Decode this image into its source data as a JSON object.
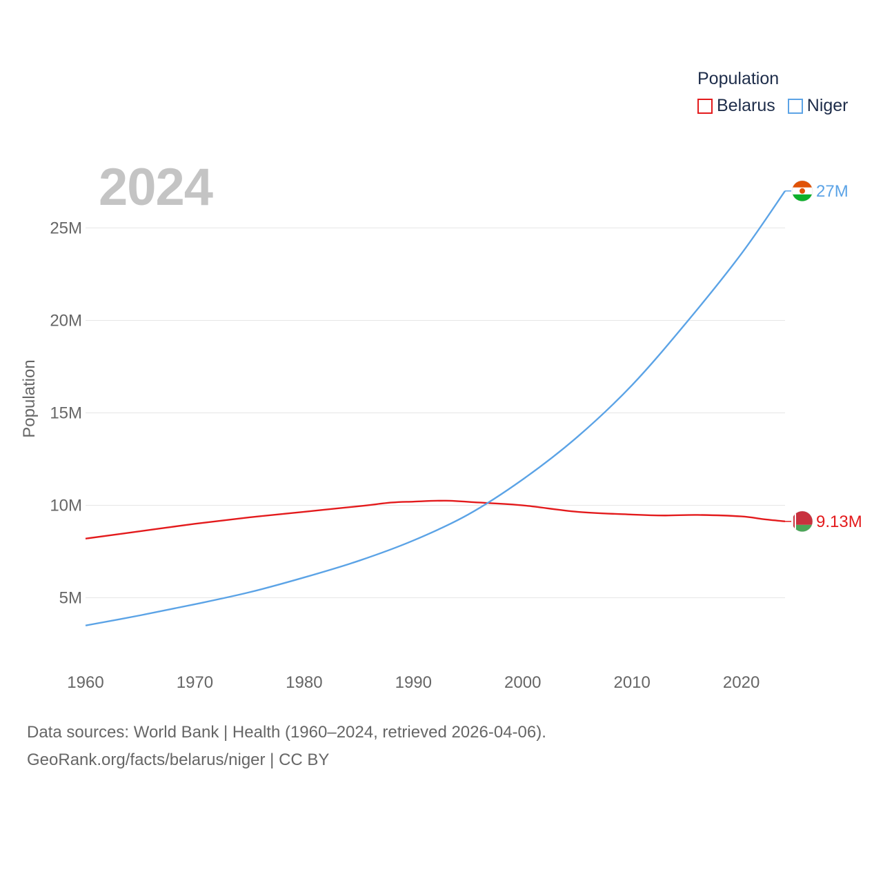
{
  "legend": {
    "title": "Population",
    "items": [
      {
        "label": "Belarus",
        "color": "#e31a1c"
      },
      {
        "label": "Niger",
        "color": "#5ba3e6"
      }
    ]
  },
  "current_year": "2024",
  "footer": {
    "line1": "Data sources: World Bank | Health (1960–2024, retrieved 2026-04-06).",
    "line2": "GeoRank.org/facts/belarus/niger | CC BY"
  },
  "chart_data": {
    "type": "line",
    "title": "",
    "xlabel": "",
    "ylabel": "Population",
    "xlim": [
      1960,
      2024
    ],
    "ylim": [
      1700000,
      28000000
    ],
    "x_ticks": [
      1960,
      1970,
      1980,
      1990,
      2000,
      2010,
      2020
    ],
    "x_tick_labels": [
      "1960",
      "1970",
      "1980",
      "1990",
      "2000",
      "2010",
      "2020"
    ],
    "y_ticks": [
      5000000,
      10000000,
      15000000,
      20000000,
      25000000
    ],
    "y_tick_labels": [
      "5M",
      "10M",
      "15M",
      "20M",
      "25M"
    ],
    "grid": true,
    "legend_position": "top-right",
    "series": [
      {
        "name": "Belarus",
        "color": "#e31a1c",
        "end_label": "9.13M",
        "x": [
          1960,
          1965,
          1970,
          1975,
          1980,
          1985,
          1988,
          1990,
          1993,
          1996,
          2000,
          2005,
          2010,
          2013,
          2016,
          2020,
          2022,
          2024
        ],
        "values": [
          8200000,
          8600000,
          9000000,
          9350000,
          9650000,
          9950000,
          10150000,
          10200000,
          10250000,
          10150000,
          10000000,
          9650000,
          9500000,
          9450000,
          9480000,
          9400000,
          9250000,
          9130000
        ]
      },
      {
        "name": "Niger",
        "color": "#5ba3e6",
        "end_label": "27M",
        "x": [
          1960,
          1965,
          1970,
          1975,
          1980,
          1985,
          1990,
          1995,
          2000,
          2005,
          2010,
          2015,
          2020,
          2024
        ],
        "values": [
          3500000,
          4050000,
          4650000,
          5300000,
          6100000,
          7000000,
          8100000,
          9500000,
          11400000,
          13700000,
          16500000,
          19900000,
          23600000,
          27000000
        ]
      }
    ]
  }
}
